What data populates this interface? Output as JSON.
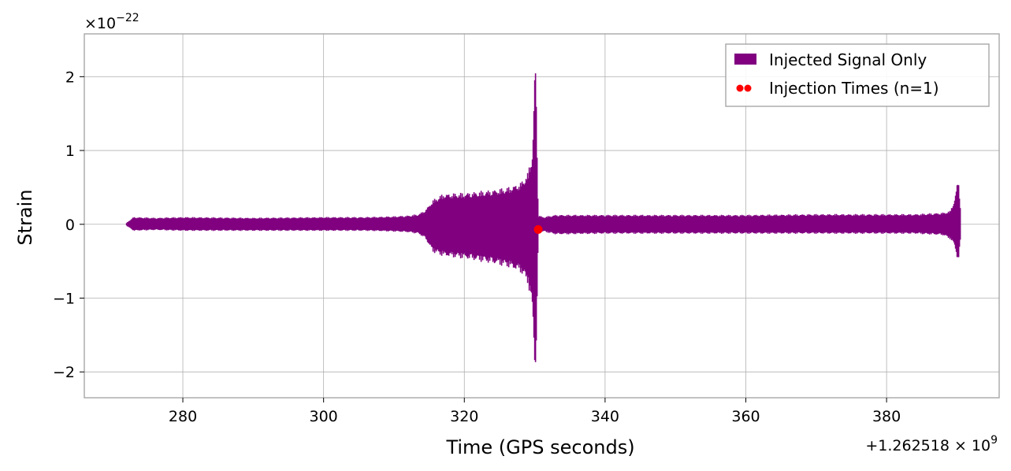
{
  "chart_data": {
    "type": "line",
    "title": "",
    "xlabel": "Time (GPS seconds)",
    "ylabel": "Strain",
    "x_offset_label": "+1.262518",
    "x_offset_exp_base": "× 10",
    "x_offset_exp": "9",
    "y_scale_base": "×10",
    "y_scale_exp": "−22",
    "xlim": [
      266,
      396
    ],
    "ylim": [
      -2.35,
      2.58
    ],
    "x_ticks": [
      280,
      300,
      320,
      340,
      360,
      380
    ],
    "x_tick_labels": [
      "280",
      "300",
      "320",
      "340",
      "360",
      "380"
    ],
    "y_ticks": [
      -2,
      -1,
      0,
      1,
      2
    ],
    "y_tick_labels": [
      "−2",
      "−1",
      "0",
      "1",
      "2"
    ],
    "grid": true,
    "legend_position": "top-right",
    "series": [
      {
        "name": "Injected Signal Only",
        "color": "#800080",
        "envelope": {
          "x": [
            272,
            273,
            276,
            280,
            290,
            300,
            306,
            310,
            312,
            313.5,
            314.5,
            315.5,
            317,
            320,
            323,
            326,
            328,
            329,
            329.7,
            330.1,
            330.3,
            330.5,
            330.7,
            331.2,
            333,
            340,
            350,
            360,
            370,
            380,
            384,
            386,
            388,
            389,
            389.7,
            390.2,
            390.5
          ],
          "upper": [
            0.02,
            0.1,
            0.09,
            0.1,
            0.09,
            0.1,
            0.1,
            0.11,
            0.12,
            0.14,
            0.2,
            0.33,
            0.42,
            0.43,
            0.46,
            0.5,
            0.57,
            0.7,
            1.0,
            2.35,
            1.3,
            0.12,
            0.12,
            0.1,
            0.13,
            0.13,
            0.13,
            0.13,
            0.14,
            0.14,
            0.14,
            0.15,
            0.16,
            0.18,
            0.35,
            0.66,
            0.2
          ],
          "lower": [
            -0.02,
            -0.09,
            -0.08,
            -0.09,
            -0.09,
            -0.09,
            -0.09,
            -0.1,
            -0.11,
            -0.13,
            -0.2,
            -0.38,
            -0.44,
            -0.47,
            -0.52,
            -0.58,
            -0.66,
            -0.8,
            -1.2,
            -2.13,
            -1.4,
            -0.15,
            -0.12,
            -0.1,
            -0.14,
            -0.13,
            -0.13,
            -0.13,
            -0.13,
            -0.13,
            -0.13,
            -0.14,
            -0.15,
            -0.2,
            -0.3,
            -0.55,
            -0.2
          ]
        }
      },
      {
        "name": "Injection Times (n=1)",
        "color": "#ff0000",
        "points": [
          {
            "x": 330.5,
            "y": -0.07
          }
        ]
      }
    ]
  }
}
